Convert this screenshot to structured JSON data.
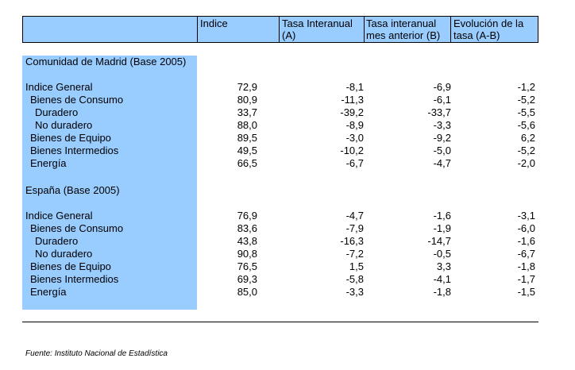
{
  "header": {
    "col_indice": "Indice",
    "col_a_line1": "Tasa Interanual",
    "col_a_line2": "(A)",
    "col_b_line1": "Tasa interanual",
    "col_b_line2": "mes anterior (B)",
    "col_ab_line1": "Evolución de la",
    "col_ab_line2": "tasa (A-B)"
  },
  "madrid": {
    "title": "Comunidad de Madrid (Base 2005)",
    "rows": [
      {
        "label": "Indice General",
        "indice": "72,9",
        "a": "-8,1",
        "b": "-6,9",
        "ab": "-1,2"
      },
      {
        "label": "Bienes de Consumo",
        "indice": "80,9",
        "a": "-11,3",
        "b": "-6,1",
        "ab": "-5,2"
      },
      {
        "label": "Duradero",
        "indice": "33,7",
        "a": "-39,2",
        "b": "-33,7",
        "ab": "-5,5"
      },
      {
        "label": "No duradero",
        "indice": "88,0",
        "a": "-8,9",
        "b": "-3,3",
        "ab": "-5,6"
      },
      {
        "label": "Bienes de Equipo",
        "indice": "89,5",
        "a": "-3,0",
        "b": "-9,2",
        "ab": "6,2"
      },
      {
        "label": "Bienes Intermedios",
        "indice": "49,5",
        "a": "-10,2",
        "b": "-5,0",
        "ab": "-5,2"
      },
      {
        "label": "Energía",
        "indice": "66,5",
        "a": "-6,7",
        "b": "-4,7",
        "ab": "-2,0"
      }
    ]
  },
  "espana": {
    "title": "España (Base 2005)",
    "rows": [
      {
        "label": "Indice General",
        "indice": "76,9",
        "a": "-4,7",
        "b": "-1,6",
        "ab": "-3,1"
      },
      {
        "label": "Bienes de Consumo",
        "indice": "83,6",
        "a": "-7,9",
        "b": "-1,9",
        "ab": "-6,0"
      },
      {
        "label": "Duradero",
        "indice": "43,8",
        "a": "-16,3",
        "b": "-14,7",
        "ab": "-1,6"
      },
      {
        "label": "No duradero",
        "indice": "90,8",
        "a": "-7,2",
        "b": "-0,5",
        "ab": "-6,7"
      },
      {
        "label": "Bienes de Equipo",
        "indice": "76,5",
        "a": "1,5",
        "b": "3,3",
        "ab": "-1,8"
      },
      {
        "label": "Bienes Intermedios",
        "indice": "69,3",
        "a": "-5,8",
        "b": "-4,1",
        "ab": "-1,7"
      },
      {
        "label": "Energía",
        "indice": "85,0",
        "a": "-3,3",
        "b": "-1,8",
        "ab": "-1,5"
      }
    ]
  },
  "source": "Fuente: Instituto Nacional de Estadística",
  "colors": {
    "header_fill": "#99ccff",
    "label_band": "#99ccff"
  }
}
